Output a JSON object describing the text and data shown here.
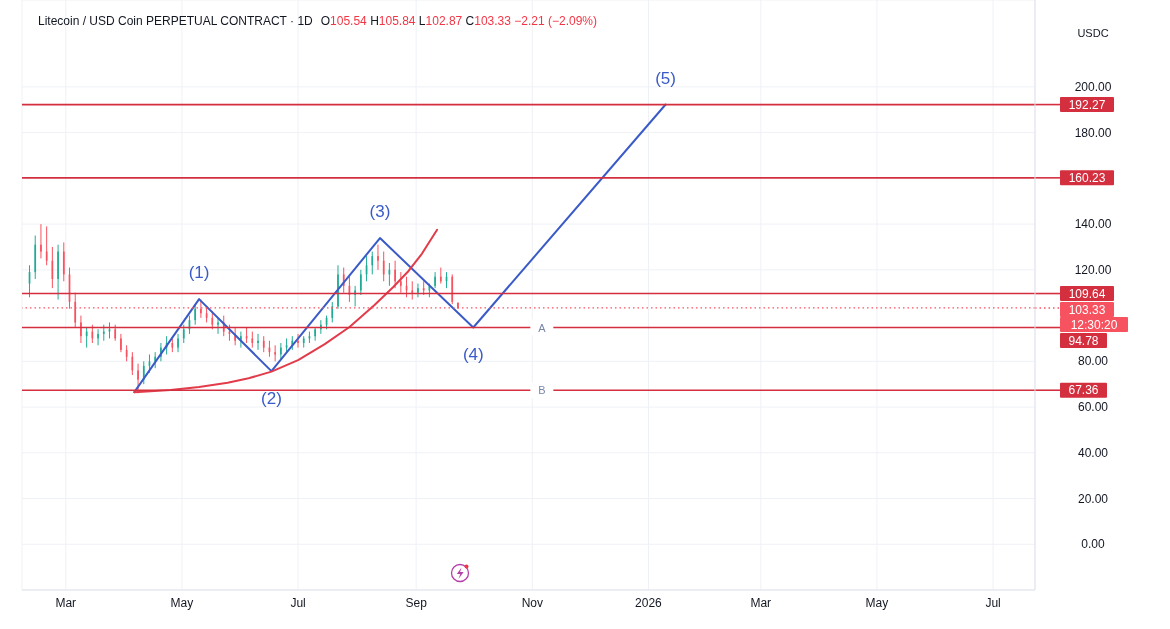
{
  "chart_data": {
    "type": "candlestick",
    "title": "Litecoin / USD Coin PERPETUAL CONTRACT · 1D",
    "subtitle": "O105.54 H105.84 L102.87 C103.33 −2.21 (−2.09%)",
    "ylabel": "USDC",
    "x": [
      "2025-02-10",
      "2025-02-13",
      "2025-02-16",
      "2025-02-19",
      "2025-02-22",
      "2025-02-25",
      "2025-02-28",
      "2025-03-03",
      "2025-03-06",
      "2025-03-09",
      "2025-03-12",
      "2025-03-15",
      "2025-03-18",
      "2025-03-21",
      "2025-03-24",
      "2025-03-27",
      "2025-03-30",
      "2025-04-02",
      "2025-04-05",
      "2025-04-08",
      "2025-04-11",
      "2025-04-14",
      "2025-04-17",
      "2025-04-20",
      "2025-04-23",
      "2025-04-26",
      "2025-04-29",
      "2025-05-02",
      "2025-05-05",
      "2025-05-08",
      "2025-05-11",
      "2025-05-14",
      "2025-05-17",
      "2025-05-20",
      "2025-05-23",
      "2025-05-26",
      "2025-05-29",
      "2025-06-01",
      "2025-06-04",
      "2025-06-07",
      "2025-06-10",
      "2025-06-13",
      "2025-06-16",
      "2025-06-19",
      "2025-06-22",
      "2025-06-25",
      "2025-06-28",
      "2025-07-01",
      "2025-07-04",
      "2025-07-07",
      "2025-07-10",
      "2025-07-13",
      "2025-07-16",
      "2025-07-19",
      "2025-07-22",
      "2025-07-25",
      "2025-07-28",
      "2025-07-31",
      "2025-08-03",
      "2025-08-06",
      "2025-08-09",
      "2025-08-12",
      "2025-08-15",
      "2025-08-18",
      "2025-08-21",
      "2025-08-24",
      "2025-08-27",
      "2025-08-30",
      "2025-09-02",
      "2025-09-05",
      "2025-09-08",
      "2025-09-11",
      "2025-09-14",
      "2025-09-17",
      "2025-09-20",
      "2025-09-23"
    ],
    "ohlc": [
      [
        114,
        122,
        108,
        119
      ],
      [
        119,
        135,
        116,
        131
      ],
      [
        131,
        140,
        125,
        128
      ],
      [
        128,
        139,
        122,
        124
      ],
      [
        124,
        130,
        112,
        116
      ],
      [
        116,
        131,
        107,
        128
      ],
      [
        128,
        132,
        115,
        118
      ],
      [
        118,
        121,
        103,
        106
      ],
      [
        106,
        110,
        95,
        97
      ],
      [
        97,
        100,
        88,
        91
      ],
      [
        91,
        95,
        86,
        93
      ],
      [
        93,
        96,
        88,
        90
      ],
      [
        90,
        94,
        87,
        92
      ],
      [
        92,
        96,
        89,
        93
      ],
      [
        93,
        97,
        90,
        94
      ],
      [
        94,
        96,
        89,
        90
      ],
      [
        90,
        92,
        84,
        85
      ],
      [
        85,
        87,
        80,
        82
      ],
      [
        82,
        84,
        74,
        76
      ],
      [
        76,
        79,
        66,
        72
      ],
      [
        72,
        80,
        70,
        78
      ],
      [
        78,
        83,
        75,
        80
      ],
      [
        80,
        84,
        77,
        82
      ],
      [
        82,
        88,
        80,
        86
      ],
      [
        86,
        91,
        83,
        88
      ],
      [
        88,
        90,
        84,
        86
      ],
      [
        86,
        92,
        84,
        90
      ],
      [
        90,
        96,
        88,
        94
      ],
      [
        94,
        100,
        92,
        98
      ],
      [
        98,
        105,
        96,
        103
      ],
      [
        103,
        107,
        99,
        101
      ],
      [
        101,
        104,
        97,
        99
      ],
      [
        99,
        102,
        94,
        96
      ],
      [
        96,
        99,
        92,
        97
      ],
      [
        97,
        100,
        91,
        93
      ],
      [
        93,
        96,
        89,
        92
      ],
      [
        92,
        95,
        87,
        89
      ],
      [
        89,
        93,
        86,
        91
      ],
      [
        91,
        95,
        88,
        90
      ],
      [
        90,
        93,
        86,
        88
      ],
      [
        88,
        92,
        85,
        89
      ],
      [
        89,
        91,
        84,
        86
      ],
      [
        86,
        89,
        82,
        84
      ],
      [
        84,
        87,
        80,
        83
      ],
      [
        83,
        88,
        81,
        86
      ],
      [
        86,
        90,
        84,
        87
      ],
      [
        87,
        91,
        85,
        89
      ],
      [
        89,
        92,
        86,
        88
      ],
      [
        88,
        91,
        86,
        90
      ],
      [
        90,
        93,
        88,
        91
      ],
      [
        91,
        95,
        89,
        94
      ],
      [
        94,
        98,
        92,
        96
      ],
      [
        96,
        100,
        94,
        99
      ],
      [
        99,
        106,
        97,
        104
      ],
      [
        104,
        122,
        103,
        118
      ],
      [
        118,
        121,
        110,
        113
      ],
      [
        113,
        117,
        106,
        109
      ],
      [
        109,
        113,
        104,
        111
      ],
      [
        111,
        120,
        109,
        118
      ],
      [
        118,
        126,
        115,
        122
      ],
      [
        122,
        128,
        118,
        126
      ],
      [
        126,
        131,
        120,
        124
      ],
      [
        124,
        128,
        115,
        118
      ],
      [
        118,
        123,
        113,
        120
      ],
      [
        120,
        124,
        112,
        115
      ],
      [
        115,
        119,
        110,
        113
      ],
      [
        113,
        117,
        108,
        111
      ],
      [
        111,
        115,
        107,
        110
      ],
      [
        110,
        114,
        108,
        112
      ],
      [
        112,
        115,
        109,
        111
      ],
      [
        111,
        114,
        108,
        113
      ],
      [
        113,
        119,
        112,
        117
      ],
      [
        117,
        121,
        114,
        115
      ],
      [
        115,
        119,
        112,
        117
      ],
      [
        117,
        118,
        105,
        106
      ],
      [
        105.54,
        105.84,
        102.87,
        103.33
      ]
    ],
    "colors": [
      "#22ab94",
      "#22ab94",
      "#f7525f",
      "#f7525f",
      "#f7525f",
      "#22ab94",
      "#f7525f",
      "#f7525f",
      "#f7525f",
      "#f7525f",
      "#22ab94",
      "#f7525f",
      "#22ab94",
      "#22ab94",
      "#22ab94",
      "#f7525f",
      "#f7525f",
      "#f7525f",
      "#f7525f",
      "#f7525f",
      "#22ab94",
      "#22ab94",
      "#22ab94",
      "#22ab94",
      "#22ab94",
      "#f7525f",
      "#22ab94",
      "#22ab94",
      "#22ab94",
      "#22ab94",
      "#f7525f",
      "#f7525f",
      "#f7525f",
      "#22ab94",
      "#f7525f",
      "#f7525f",
      "#f7525f",
      "#22ab94",
      "#f7525f",
      "#f7525f",
      "#22ab94",
      "#f7525f",
      "#f7525f",
      "#f7525f",
      "#22ab94",
      "#22ab94",
      "#22ab94",
      "#f7525f",
      "#22ab94",
      "#22ab94",
      "#22ab94",
      "#22ab94",
      "#22ab94",
      "#22ab94",
      "#22ab94",
      "#f7525f",
      "#f7525f",
      "#22ab94",
      "#22ab94",
      "#22ab94",
      "#22ab94",
      "#f7525f",
      "#f7525f",
      "#22ab94",
      "#f7525f",
      "#f7525f",
      "#f7525f",
      "#f7525f",
      "#22ab94",
      "#f7525f",
      "#22ab94",
      "#22ab94",
      "#f7525f",
      "#22ab94",
      "#f7525f",
      "#f7525f"
    ],
    "series": [
      {
        "type": "line",
        "x": [
          "2025-04-06",
          "2025-05-10",
          "2025-06-17",
          "2025-08-13",
          "2025-10-01",
          "2026-01-10"
        ],
        "values": [
          66.5,
          107.2,
          75.7,
          133.9,
          94.8,
          192.3
        ],
        "color": "#3a5bc7"
      },
      {
        "type": "line",
        "x": [
          "2025-04-06",
          "2025-04-25",
          "2025-05-10",
          "2025-05-25",
          "2025-06-05",
          "2025-06-17",
          "2025-07-01",
          "2025-07-15",
          "2025-07-28",
          "2025-08-10",
          "2025-08-20",
          "2025-08-28",
          "2025-09-04",
          "2025-09-12"
        ],
        "values": [
          66.5,
          67.5,
          68.8,
          70.6,
          72.6,
          75.5,
          80.5,
          87.5,
          95,
          104.5,
          112.5,
          119.5,
          127,
          137.5
        ],
        "color": "#e23b4a"
      }
    ],
    "ref_lines": [
      {
        "axis": "y",
        "value": 192.27,
        "label": "192.27",
        "color": "#d32f3f"
      },
      {
        "axis": "y",
        "value": 160.23,
        "label": "160.23",
        "color": "#d32f3f"
      },
      {
        "axis": "y",
        "value": 109.64,
        "label": "109.64",
        "color": "#d32f3f"
      },
      {
        "axis": "y",
        "value": 103.33,
        "label": "103.33",
        "color": "#f7525f",
        "line_style": "dotted"
      },
      {
        "axis": "y",
        "value": 94.78,
        "label": "94.78",
        "color": "#d32f3f"
      },
      {
        "axis": "y",
        "value": 67.36,
        "label": "67.36",
        "color": "#d32f3f"
      }
    ],
    "annotations": [
      {
        "text": "(1)",
        "x": "2025-05-10",
        "y": 107.2
      },
      {
        "text": "(2)",
        "x": "2025-06-17",
        "y": 75.7
      },
      {
        "text": "(3)",
        "x": "2025-08-13",
        "y": 133.9
      },
      {
        "text": "(4)",
        "x": "2025-10-01",
        "y": 94.8
      },
      {
        "text": "(5)",
        "x": "2026-01-10",
        "y": 192.3
      },
      {
        "text": "A",
        "x": "2025-11-06",
        "y": 94.78
      },
      {
        "text": "B",
        "x": "2025-11-06",
        "y": 67.36
      },
      "12:30:20"
    ],
    "xlim": [
      "2025-02-06",
      "2026-07-23"
    ],
    "xticks": [
      {
        "value": "2025-03-01",
        "label": "Mar"
      },
      {
        "value": "2025-05-01",
        "label": "May"
      },
      {
        "value": "2025-07-01",
        "label": "Jul"
      },
      {
        "value": "2025-09-01",
        "label": "Sep"
      },
      {
        "value": "2025-11-01",
        "label": "Nov"
      },
      {
        "value": "2026-01-01",
        "label": "2026"
      },
      {
        "value": "2026-03-01",
        "label": "Mar"
      },
      {
        "value": "2026-05-01",
        "label": "May"
      },
      {
        "value": "2026-07-01",
        "label": "Jul"
      }
    ],
    "ylim": [
      -20,
      238
    ],
    "yticks": [
      {
        "value": 0,
        "label": "0.00"
      },
      {
        "value": 20,
        "label": "20.00"
      },
      {
        "value": 40,
        "label": "40.00"
      },
      {
        "value": 60,
        "label": "60.00"
      },
      {
        "value": 80,
        "label": "80.00"
      },
      {
        "value": 120,
        "label": "120.00"
      },
      {
        "value": 140,
        "label": "140.00"
      },
      {
        "value": 180,
        "label": "180.00"
      },
      {
        "value": 200,
        "label": "200.00"
      }
    ],
    "grid": true
  }
}
